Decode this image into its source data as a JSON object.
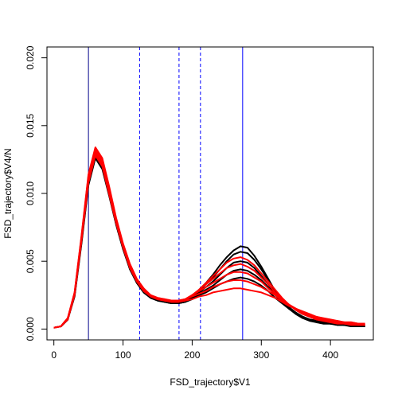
{
  "chart_data": {
    "type": "line",
    "title": "",
    "xlabel": "FSD_trajectory$V1",
    "ylabel": "FSD_trajectory$V4/N",
    "xlim": [
      -10,
      462
    ],
    "ylim": [
      -0.0008,
      0.0208
    ],
    "x_ticks": [
      0,
      100,
      200,
      300,
      400
    ],
    "x_tick_labels": [
      "0",
      "100",
      "200",
      "300",
      "400"
    ],
    "y_ticks": [
      0.0,
      0.005,
      0.01,
      0.015,
      0.02
    ],
    "y_tick_labels": [
      "0.000",
      "0.005",
      "0.010",
      "0.015",
      "0.020"
    ],
    "grid": false,
    "legend": "none",
    "vertical_lines": [
      {
        "x": 50,
        "style": "solid",
        "color": "#00008B"
      },
      {
        "x": 124,
        "style": "dashed",
        "color": "#0000FF"
      },
      {
        "x": 181,
        "style": "dashed",
        "color": "#0000FF"
      },
      {
        "x": 212,
        "style": "dashed",
        "color": "#0000FF"
      },
      {
        "x": 273,
        "style": "solid",
        "color": "#0000FF"
      }
    ],
    "colors": {
      "black_series": "#000000",
      "red_series": "#FF0000"
    },
    "series": [
      {
        "color": "black",
        "peak": 0.0061,
        "x": [
          0,
          10,
          20,
          30,
          40,
          50,
          60,
          70,
          80,
          90,
          100,
          110,
          120,
          130,
          140,
          150,
          160,
          170,
          180,
          190,
          200,
          210,
          220,
          230,
          240,
          250,
          260,
          270,
          280,
          290,
          300,
          310,
          320,
          330,
          340,
          350,
          360,
          370,
          380,
          390,
          400,
          410,
          420,
          430,
          440,
          450
        ],
        "values": [
          0.0001,
          0.0002,
          0.0007,
          0.0025,
          0.0065,
          0.0108,
          0.0128,
          0.012,
          0.01,
          0.0078,
          0.006,
          0.0045,
          0.0035,
          0.0028,
          0.0023,
          0.0022,
          0.0021,
          0.002,
          0.0019,
          0.002,
          0.0024,
          0.0029,
          0.0034,
          0.004,
          0.0047,
          0.0053,
          0.0058,
          0.0061,
          0.006,
          0.0054,
          0.0046,
          0.0037,
          0.0028,
          0.0021,
          0.0015,
          0.0011,
          0.0008,
          0.0006,
          0.0005,
          0.0004,
          0.0004,
          0.0003,
          0.0003,
          0.0002,
          0.0002,
          0.0002
        ]
      },
      {
        "color": "black",
        "peak": 0.0057,
        "x": [
          0,
          10,
          20,
          30,
          40,
          50,
          60,
          70,
          80,
          90,
          100,
          110,
          120,
          130,
          140,
          150,
          160,
          170,
          180,
          190,
          200,
          210,
          220,
          230,
          240,
          250,
          260,
          270,
          280,
          290,
          300,
          310,
          320,
          330,
          340,
          350,
          360,
          370,
          380,
          390,
          400,
          410,
          420,
          430,
          440,
          450
        ],
        "values": [
          0.0001,
          0.0002,
          0.0007,
          0.0026,
          0.0066,
          0.011,
          0.013,
          0.0122,
          0.0101,
          0.0079,
          0.0061,
          0.0046,
          0.0035,
          0.0028,
          0.0024,
          0.0022,
          0.0021,
          0.002,
          0.002,
          0.0021,
          0.0024,
          0.0028,
          0.0033,
          0.0038,
          0.0044,
          0.005,
          0.0055,
          0.0057,
          0.0056,
          0.0051,
          0.0044,
          0.0036,
          0.0028,
          0.0021,
          0.0016,
          0.0012,
          0.0009,
          0.0007,
          0.0005,
          0.0004,
          0.0004,
          0.0003,
          0.0003,
          0.0002,
          0.0002,
          0.0002
        ]
      },
      {
        "color": "black",
        "peak": 0.005,
        "x": [
          0,
          10,
          20,
          30,
          40,
          50,
          60,
          70,
          80,
          90,
          100,
          110,
          120,
          130,
          140,
          150,
          160,
          170,
          180,
          190,
          200,
          210,
          220,
          230,
          240,
          250,
          260,
          270,
          280,
          290,
          300,
          310,
          320,
          330,
          340,
          350,
          360,
          370,
          380,
          390,
          400,
          410,
          420,
          430,
          440,
          450
        ],
        "values": [
          0.0001,
          0.0002,
          0.0007,
          0.0025,
          0.0064,
          0.0107,
          0.0127,
          0.0119,
          0.0099,
          0.0077,
          0.0059,
          0.0045,
          0.0034,
          0.0027,
          0.0023,
          0.0021,
          0.002,
          0.0019,
          0.0019,
          0.0021,
          0.0024,
          0.0027,
          0.0031,
          0.0035,
          0.004,
          0.0045,
          0.0049,
          0.005,
          0.0049,
          0.0045,
          0.0039,
          0.0033,
          0.0026,
          0.002,
          0.0016,
          0.0012,
          0.0009,
          0.0007,
          0.0006,
          0.0005,
          0.0004,
          0.0004,
          0.0003,
          0.0003,
          0.0002,
          0.0002
        ]
      },
      {
        "color": "black",
        "peak": 0.0044,
        "x": [
          0,
          10,
          20,
          30,
          40,
          50,
          60,
          70,
          80,
          90,
          100,
          110,
          120,
          130,
          140,
          150,
          160,
          170,
          180,
          190,
          200,
          210,
          220,
          230,
          240,
          250,
          260,
          270,
          280,
          290,
          300,
          310,
          320,
          330,
          340,
          350,
          360,
          370,
          380,
          390,
          400,
          410,
          420,
          430,
          440,
          450
        ],
        "values": [
          0.0001,
          0.0002,
          0.0007,
          0.0024,
          0.0063,
          0.0106,
          0.0126,
          0.0118,
          0.0098,
          0.0077,
          0.0059,
          0.0044,
          0.0034,
          0.0027,
          0.0023,
          0.0021,
          0.002,
          0.0019,
          0.0019,
          0.002,
          0.0023,
          0.0026,
          0.0029,
          0.0032,
          0.0036,
          0.004,
          0.0043,
          0.0044,
          0.0043,
          0.004,
          0.0036,
          0.0031,
          0.0025,
          0.002,
          0.0016,
          0.0012,
          0.0009,
          0.0007,
          0.0006,
          0.0005,
          0.0004,
          0.0004,
          0.0003,
          0.0003,
          0.0003,
          0.0002
        ]
      },
      {
        "color": "black",
        "peak": 0.0038,
        "x": [
          0,
          10,
          20,
          30,
          40,
          50,
          60,
          70,
          80,
          90,
          100,
          110,
          120,
          130,
          140,
          150,
          160,
          170,
          180,
          190,
          200,
          210,
          220,
          230,
          240,
          250,
          260,
          270,
          280,
          290,
          300,
          310,
          320,
          330,
          340,
          350,
          360,
          370,
          380,
          390,
          400,
          410,
          420,
          430,
          440,
          450
        ],
        "values": [
          0.0001,
          0.0002,
          0.0007,
          0.0025,
          0.0065,
          0.0109,
          0.0129,
          0.0121,
          0.01,
          0.0078,
          0.006,
          0.0045,
          0.0035,
          0.0028,
          0.0023,
          0.0021,
          0.002,
          0.0019,
          0.0019,
          0.002,
          0.0022,
          0.0025,
          0.0027,
          0.003,
          0.0033,
          0.0035,
          0.0037,
          0.0038,
          0.0037,
          0.0035,
          0.0032,
          0.0028,
          0.0023,
          0.0019,
          0.0015,
          0.0012,
          0.0009,
          0.0007,
          0.0006,
          0.0005,
          0.0004,
          0.0004,
          0.0003,
          0.0003,
          0.0003,
          0.0002
        ]
      },
      {
        "color": "red",
        "peak": 0.0048,
        "x": [
          0,
          10,
          20,
          30,
          40,
          50,
          60,
          70,
          80,
          90,
          100,
          110,
          120,
          130,
          140,
          150,
          160,
          170,
          180,
          190,
          200,
          210,
          220,
          230,
          240,
          250,
          260,
          270,
          280,
          290,
          300,
          310,
          320,
          330,
          340,
          350,
          360,
          370,
          380,
          390,
          400,
          410,
          420,
          430,
          440,
          450
        ],
        "values": [
          0.0001,
          0.0002,
          0.0008,
          0.0027,
          0.0068,
          0.0113,
          0.0133,
          0.0125,
          0.0104,
          0.0081,
          0.0062,
          0.0047,
          0.0036,
          0.0029,
          0.0024,
          0.0022,
          0.0021,
          0.002,
          0.002,
          0.0022,
          0.0025,
          0.0029,
          0.0033,
          0.0037,
          0.0041,
          0.0045,
          0.0047,
          0.0048,
          0.0046,
          0.0043,
          0.0038,
          0.0033,
          0.0027,
          0.0022,
          0.0018,
          0.0014,
          0.0011,
          0.0009,
          0.0007,
          0.0006,
          0.0005,
          0.0005,
          0.0004,
          0.0004,
          0.0003,
          0.0003
        ]
      },
      {
        "color": "red",
        "peak": 0.0042,
        "x": [
          0,
          10,
          20,
          30,
          40,
          50,
          60,
          70,
          80,
          90,
          100,
          110,
          120,
          130,
          140,
          150,
          160,
          170,
          180,
          190,
          200,
          210,
          220,
          230,
          240,
          250,
          260,
          270,
          280,
          290,
          300,
          310,
          320,
          330,
          340,
          350,
          360,
          370,
          380,
          390,
          400,
          410,
          420,
          430,
          440,
          450
        ],
        "values": [
          0.0001,
          0.0002,
          0.0008,
          0.0026,
          0.0067,
          0.0111,
          0.0131,
          0.0123,
          0.0102,
          0.008,
          0.0061,
          0.0046,
          0.0036,
          0.0029,
          0.0025,
          0.0023,
          0.0022,
          0.0021,
          0.0021,
          0.0022,
          0.0025,
          0.0028,
          0.0031,
          0.0034,
          0.0037,
          0.004,
          0.0042,
          0.0042,
          0.0041,
          0.0038,
          0.0035,
          0.003,
          0.0026,
          0.0022,
          0.0018,
          0.0015,
          0.0012,
          0.001,
          0.0008,
          0.0007,
          0.0006,
          0.0005,
          0.0005,
          0.0004,
          0.0004,
          0.0003
        ]
      },
      {
        "color": "red",
        "peak": 0.0036,
        "x": [
          0,
          10,
          20,
          30,
          40,
          50,
          60,
          70,
          80,
          90,
          100,
          110,
          120,
          130,
          140,
          150,
          160,
          170,
          180,
          190,
          200,
          210,
          220,
          230,
          240,
          250,
          260,
          270,
          280,
          290,
          300,
          310,
          320,
          330,
          340,
          350,
          360,
          370,
          380,
          390,
          400,
          410,
          420,
          430,
          440,
          450
        ],
        "values": [
          0.0001,
          0.0002,
          0.0008,
          0.0027,
          0.0069,
          0.0114,
          0.0134,
          0.0126,
          0.0105,
          0.0082,
          0.0063,
          0.0048,
          0.0037,
          0.003,
          0.0025,
          0.0023,
          0.0022,
          0.0021,
          0.0021,
          0.0022,
          0.0024,
          0.0026,
          0.0028,
          0.0031,
          0.0033,
          0.0035,
          0.0036,
          0.0036,
          0.0035,
          0.0033,
          0.0031,
          0.0028,
          0.0025,
          0.0021,
          0.0018,
          0.0015,
          0.0012,
          0.001,
          0.0009,
          0.0007,
          0.0006,
          0.0006,
          0.0005,
          0.0005,
          0.0004,
          0.0004
        ]
      },
      {
        "color": "red",
        "peak": 0.003,
        "x": [
          0,
          10,
          20,
          30,
          40,
          50,
          60,
          70,
          80,
          90,
          100,
          110,
          120,
          130,
          140,
          150,
          160,
          170,
          180,
          190,
          200,
          210,
          220,
          230,
          240,
          250,
          260,
          270,
          280,
          290,
          300,
          310,
          320,
          330,
          340,
          350,
          360,
          370,
          380,
          390,
          400,
          410,
          420,
          430,
          440,
          450
        ],
        "values": [
          0.0001,
          0.0002,
          0.0007,
          0.0026,
          0.0066,
          0.011,
          0.013,
          0.0122,
          0.0101,
          0.0079,
          0.0061,
          0.0046,
          0.0035,
          0.0028,
          0.0024,
          0.0022,
          0.0021,
          0.002,
          0.002,
          0.0021,
          0.0022,
          0.0024,
          0.0025,
          0.0027,
          0.0028,
          0.0029,
          0.003,
          0.003,
          0.0029,
          0.0028,
          0.0027,
          0.0025,
          0.0023,
          0.002,
          0.0017,
          0.0015,
          0.0013,
          0.0011,
          0.0009,
          0.0008,
          0.0007,
          0.0006,
          0.0005,
          0.0005,
          0.0004,
          0.0004
        ]
      },
      {
        "color": "red",
        "peak": 0.0053,
        "x": [
          0,
          10,
          20,
          30,
          40,
          50,
          60,
          70,
          80,
          90,
          100,
          110,
          120,
          130,
          140,
          150,
          160,
          170,
          180,
          190,
          200,
          210,
          220,
          230,
          240,
          250,
          260,
          270,
          280,
          290,
          300,
          310,
          320,
          330,
          340,
          350,
          360,
          370,
          380,
          390,
          400,
          410,
          420,
          430,
          440,
          450
        ],
        "values": [
          0.0001,
          0.0002,
          0.0007,
          0.0025,
          0.0065,
          0.0108,
          0.0128,
          0.012,
          0.0099,
          0.0078,
          0.006,
          0.0045,
          0.0035,
          0.0028,
          0.0024,
          0.0022,
          0.0021,
          0.002,
          0.002,
          0.0021,
          0.0025,
          0.0029,
          0.0034,
          0.0039,
          0.0044,
          0.0049,
          0.0052,
          0.0053,
          0.0051,
          0.0047,
          0.0041,
          0.0035,
          0.0029,
          0.0023,
          0.0018,
          0.0014,
          0.0011,
          0.0009,
          0.0007,
          0.0006,
          0.0005,
          0.0004,
          0.0004,
          0.0003,
          0.0003,
          0.0003
        ]
      }
    ]
  }
}
